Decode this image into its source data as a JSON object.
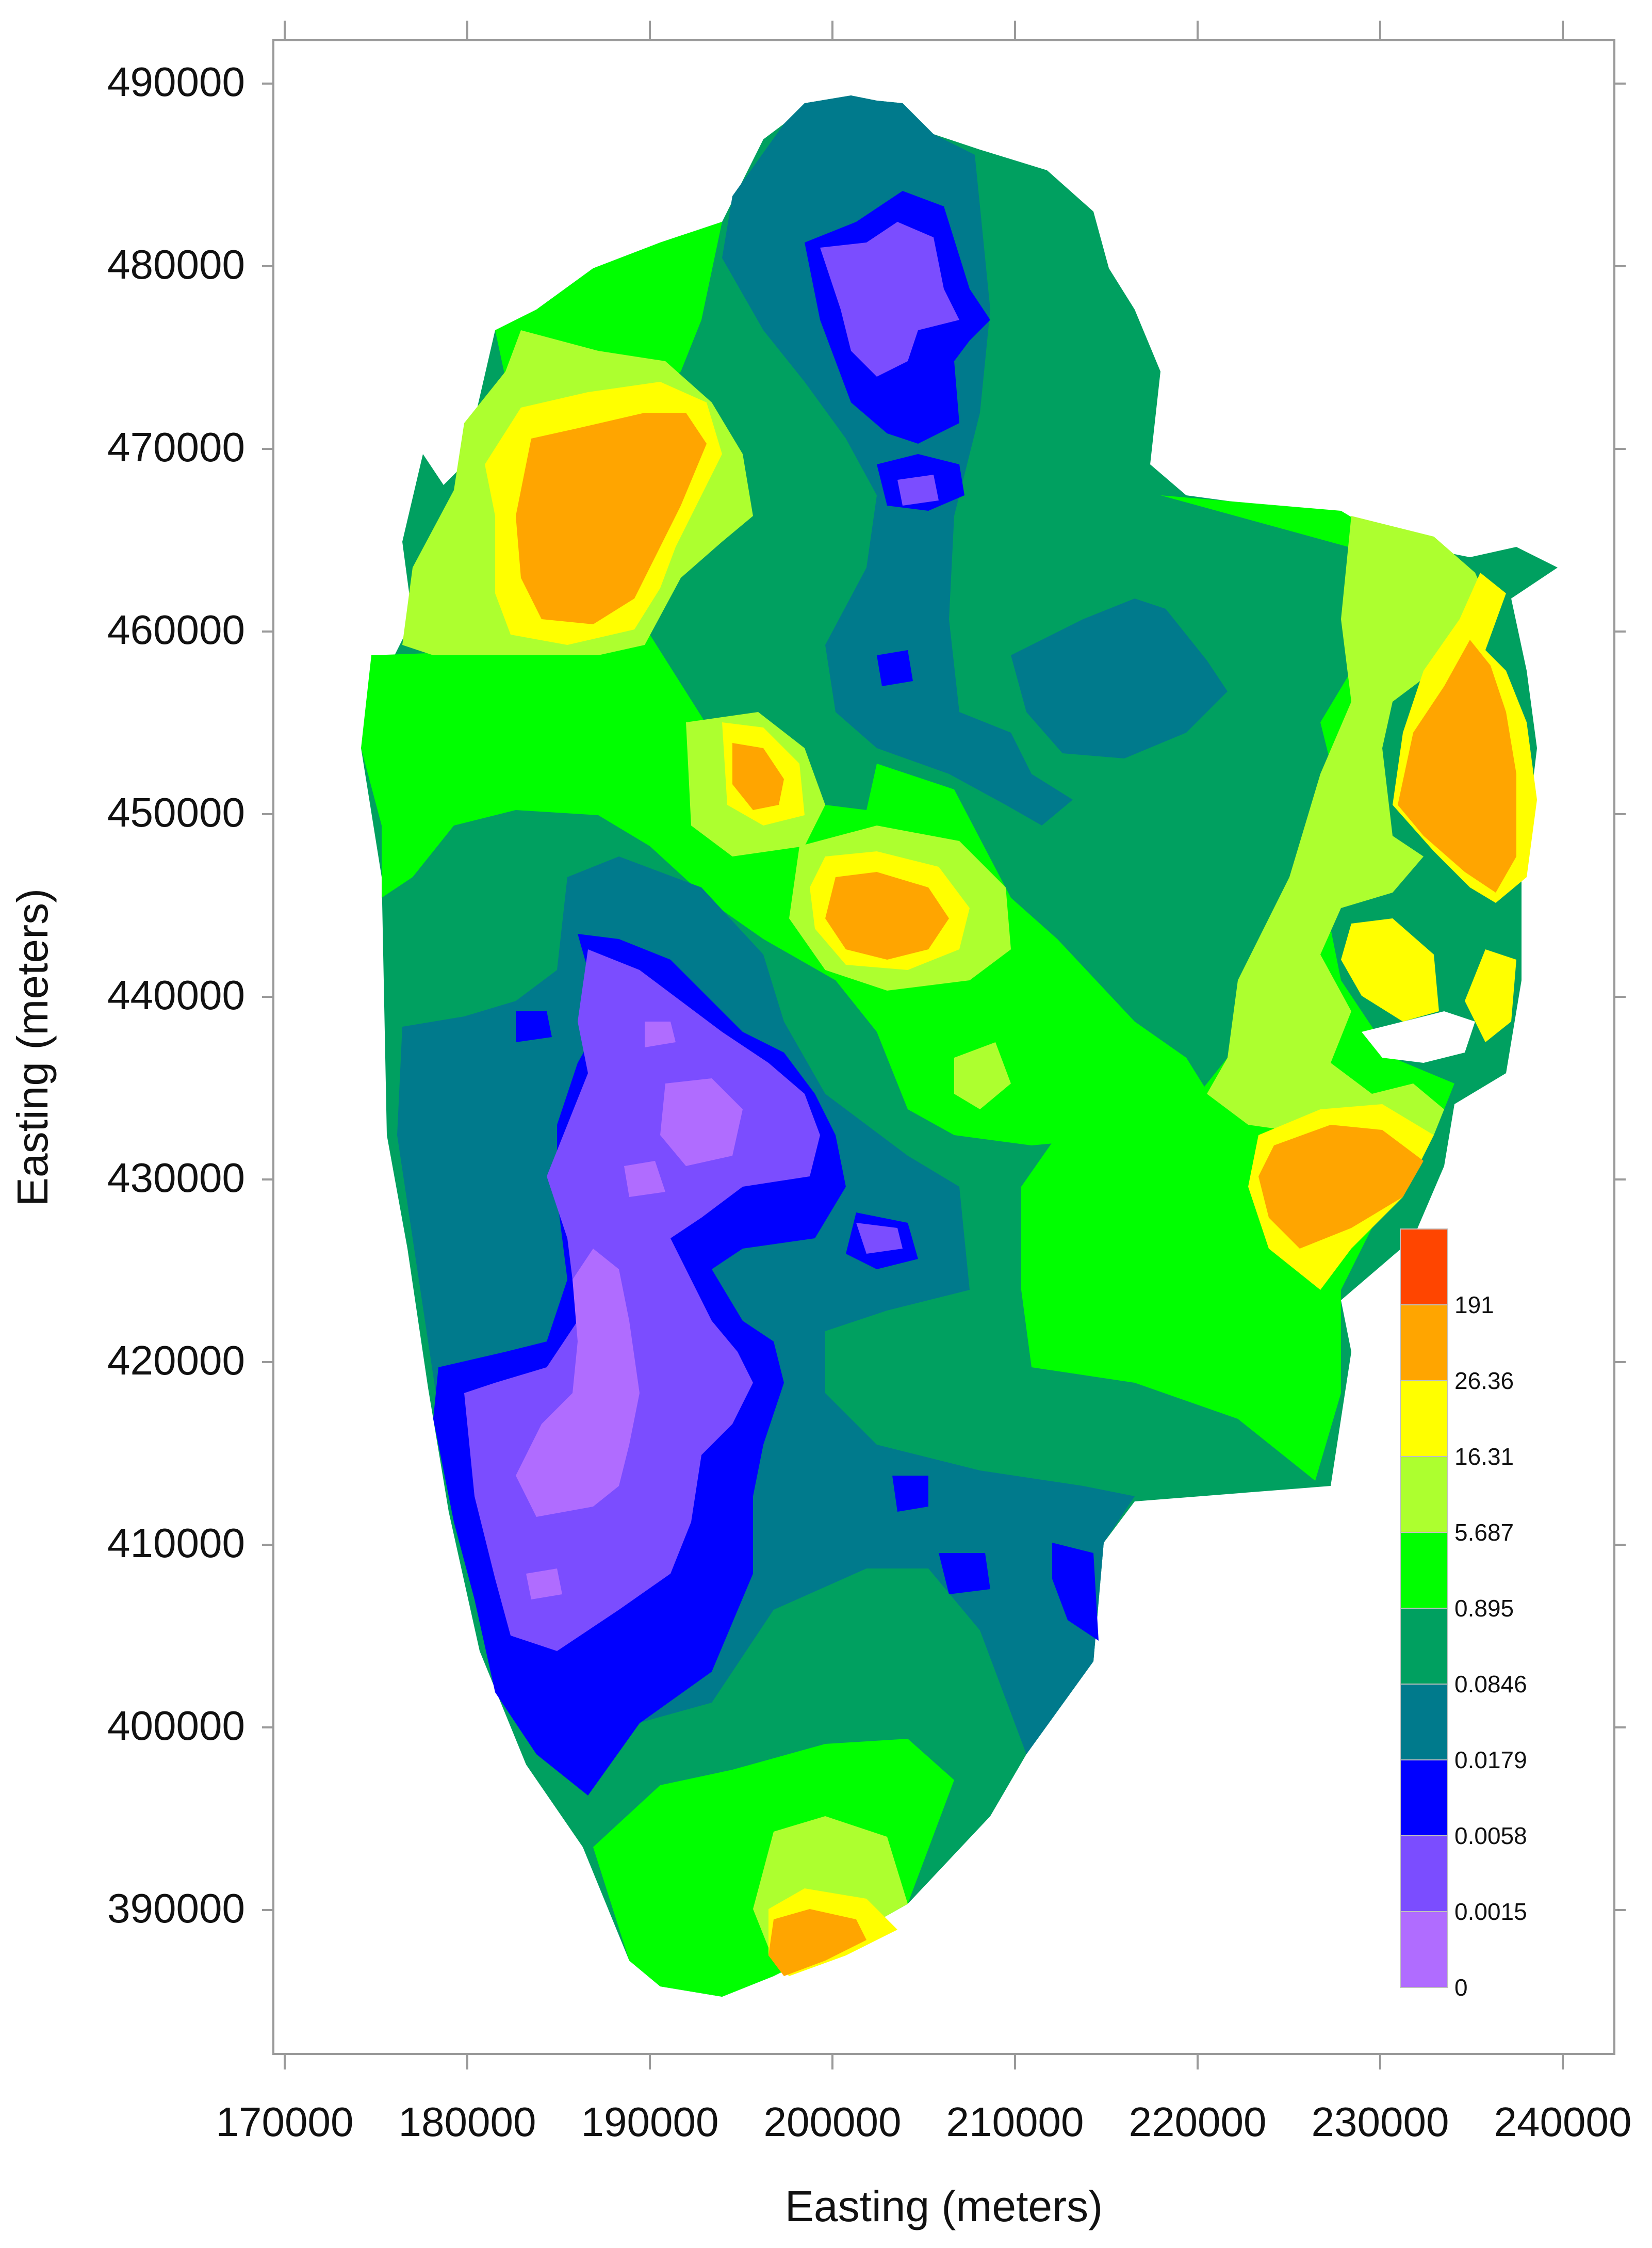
{
  "x_axis": {
    "title": "Easting (meters)",
    "ticks": [
      "170000",
      "180000",
      "190000",
      "200000",
      "210000",
      "220000",
      "230000",
      "240000"
    ]
  },
  "y_axis": {
    "title": "Easting (meters)",
    "ticks": [
      "490000",
      "480000",
      "470000",
      "460000",
      "450000",
      "440000",
      "430000",
      "420000",
      "410000",
      "400000",
      "390000"
    ]
  },
  "legend": {
    "labels": [
      "191",
      "26.36",
      "16.31",
      "5.687",
      "0.895",
      "0.0846",
      "0.0179",
      "0.0058",
      "0.0015",
      "0"
    ],
    "colors": [
      "#ff4500",
      "#ffa500",
      "#ffff00",
      "#adff2f",
      "#00ff00",
      "#00a060",
      "#007a8c",
      "#0000ff",
      "#7b4dff",
      "#b06cff"
    ]
  },
  "colors": {
    "lavender": "#b06cff",
    "violet": "#7b4dff",
    "blue": "#0000ff",
    "teal": "#007a8c",
    "dark_green": "#00a060",
    "green": "#00ff00",
    "yellow_green": "#adff2f",
    "yellow": "#ffff00",
    "orange": "#ffa500",
    "red_orange": "#ff4500"
  }
}
